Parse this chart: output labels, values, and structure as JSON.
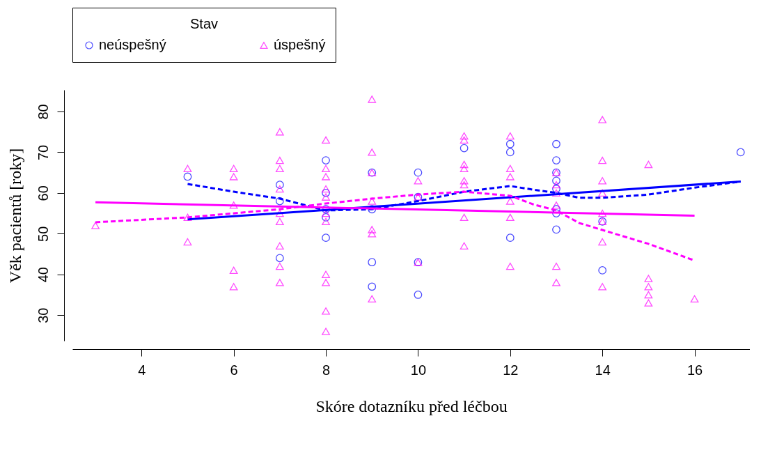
{
  "chart_data": {
    "type": "scatter",
    "xlabel": "Skóre dotazníku před léčbou",
    "ylabel": "Věk pacientů [roky]",
    "legend_title": "Stav",
    "legend": "top left",
    "grid": false,
    "xlim": [
      2.5,
      17.2
    ],
    "xticks": [
      4,
      6,
      8,
      10,
      12,
      14,
      16
    ],
    "ylim": [
      23.7,
      85.3
    ],
    "yticks": [
      30,
      40,
      50,
      60,
      70,
      80
    ],
    "series": [
      {
        "name": "neúspešný",
        "marker": "circle",
        "color": "#0000ff",
        "x": [
          5,
          7,
          7,
          7,
          8,
          8,
          8,
          8,
          8,
          9,
          9,
          9,
          9,
          10,
          10,
          10,
          10,
          11,
          12,
          12,
          12,
          13,
          13,
          13,
          13,
          13,
          13,
          13,
          13,
          14,
          14,
          17
        ],
        "values": [
          64,
          62,
          58,
          44,
          68,
          60,
          56,
          54,
          49,
          65,
          56,
          43,
          37,
          65,
          59,
          43,
          35,
          71,
          72,
          70,
          49,
          72,
          68,
          65,
          63,
          61,
          56,
          55,
          51,
          53,
          41,
          70
        ]
      },
      {
        "name": "úspešný",
        "marker": "triangle",
        "color": "#ff00ff",
        "x": [
          3,
          5,
          5,
          5,
          6,
          6,
          6,
          6,
          6,
          7,
          7,
          7,
          7,
          7,
          7,
          7,
          7,
          7,
          8,
          8,
          8,
          8,
          8,
          8,
          8,
          8,
          8,
          8,
          8,
          9,
          9,
          9,
          9,
          9,
          9,
          9,
          10,
          10,
          10,
          11,
          11,
          11,
          11,
          11,
          11,
          11,
          11,
          12,
          12,
          12,
          12,
          12,
          12,
          13,
          13,
          13,
          13,
          13,
          13,
          14,
          14,
          14,
          14,
          14,
          14,
          14,
          14,
          15,
          15,
          15,
          15,
          15,
          16
        ],
        "values": [
          52,
          66,
          54,
          48,
          66,
          64,
          57,
          41,
          37,
          75,
          68,
          66,
          61,
          55,
          53,
          47,
          42,
          38,
          73,
          66,
          64,
          61,
          59,
          55,
          53,
          40,
          38,
          31,
          26,
          83,
          70,
          65,
          58,
          51,
          50,
          34,
          63,
          59,
          43,
          74,
          73,
          67,
          66,
          63,
          62,
          54,
          47,
          74,
          66,
          64,
          58,
          54,
          42,
          65,
          62,
          60,
          57,
          42,
          38,
          78,
          68,
          63,
          60,
          55,
          53,
          48,
          37,
          67,
          39,
          37,
          35,
          33,
          34
        ]
      },
      {
        "type": "line",
        "line_style": "solid",
        "color": "#0000ff",
        "x": [
          5,
          17
        ],
        "values": [
          53.5,
          62.8
        ]
      },
      {
        "type": "line",
        "line_style": "dashed",
        "color": "#0000ff",
        "x": [
          5,
          6,
          7,
          8,
          9,
          10,
          11,
          12,
          12.5,
          13,
          13.5,
          14,
          15,
          16,
          17
        ],
        "values": [
          62.2,
          60.3,
          58.6,
          55.7,
          56,
          58,
          60.3,
          61.7,
          60.8,
          60,
          58.8,
          58.8,
          59.6,
          61.3,
          62.8
        ]
      },
      {
        "type": "line",
        "line_style": "solid",
        "color": "#ff00ff",
        "x": [
          3,
          16
        ],
        "values": [
          57.7,
          54.4
        ]
      },
      {
        "type": "line",
        "line_style": "dashed",
        "color": "#ff00ff",
        "x": [
          3,
          5,
          7,
          8,
          9,
          10,
          11,
          12,
          12.5,
          13,
          13.5,
          14,
          15,
          16
        ],
        "values": [
          52.8,
          54,
          56,
          57.4,
          58.6,
          59.6,
          60.3,
          59.3,
          57.2,
          55.7,
          52.6,
          50.9,
          47.5,
          43.4
        ]
      }
    ]
  }
}
